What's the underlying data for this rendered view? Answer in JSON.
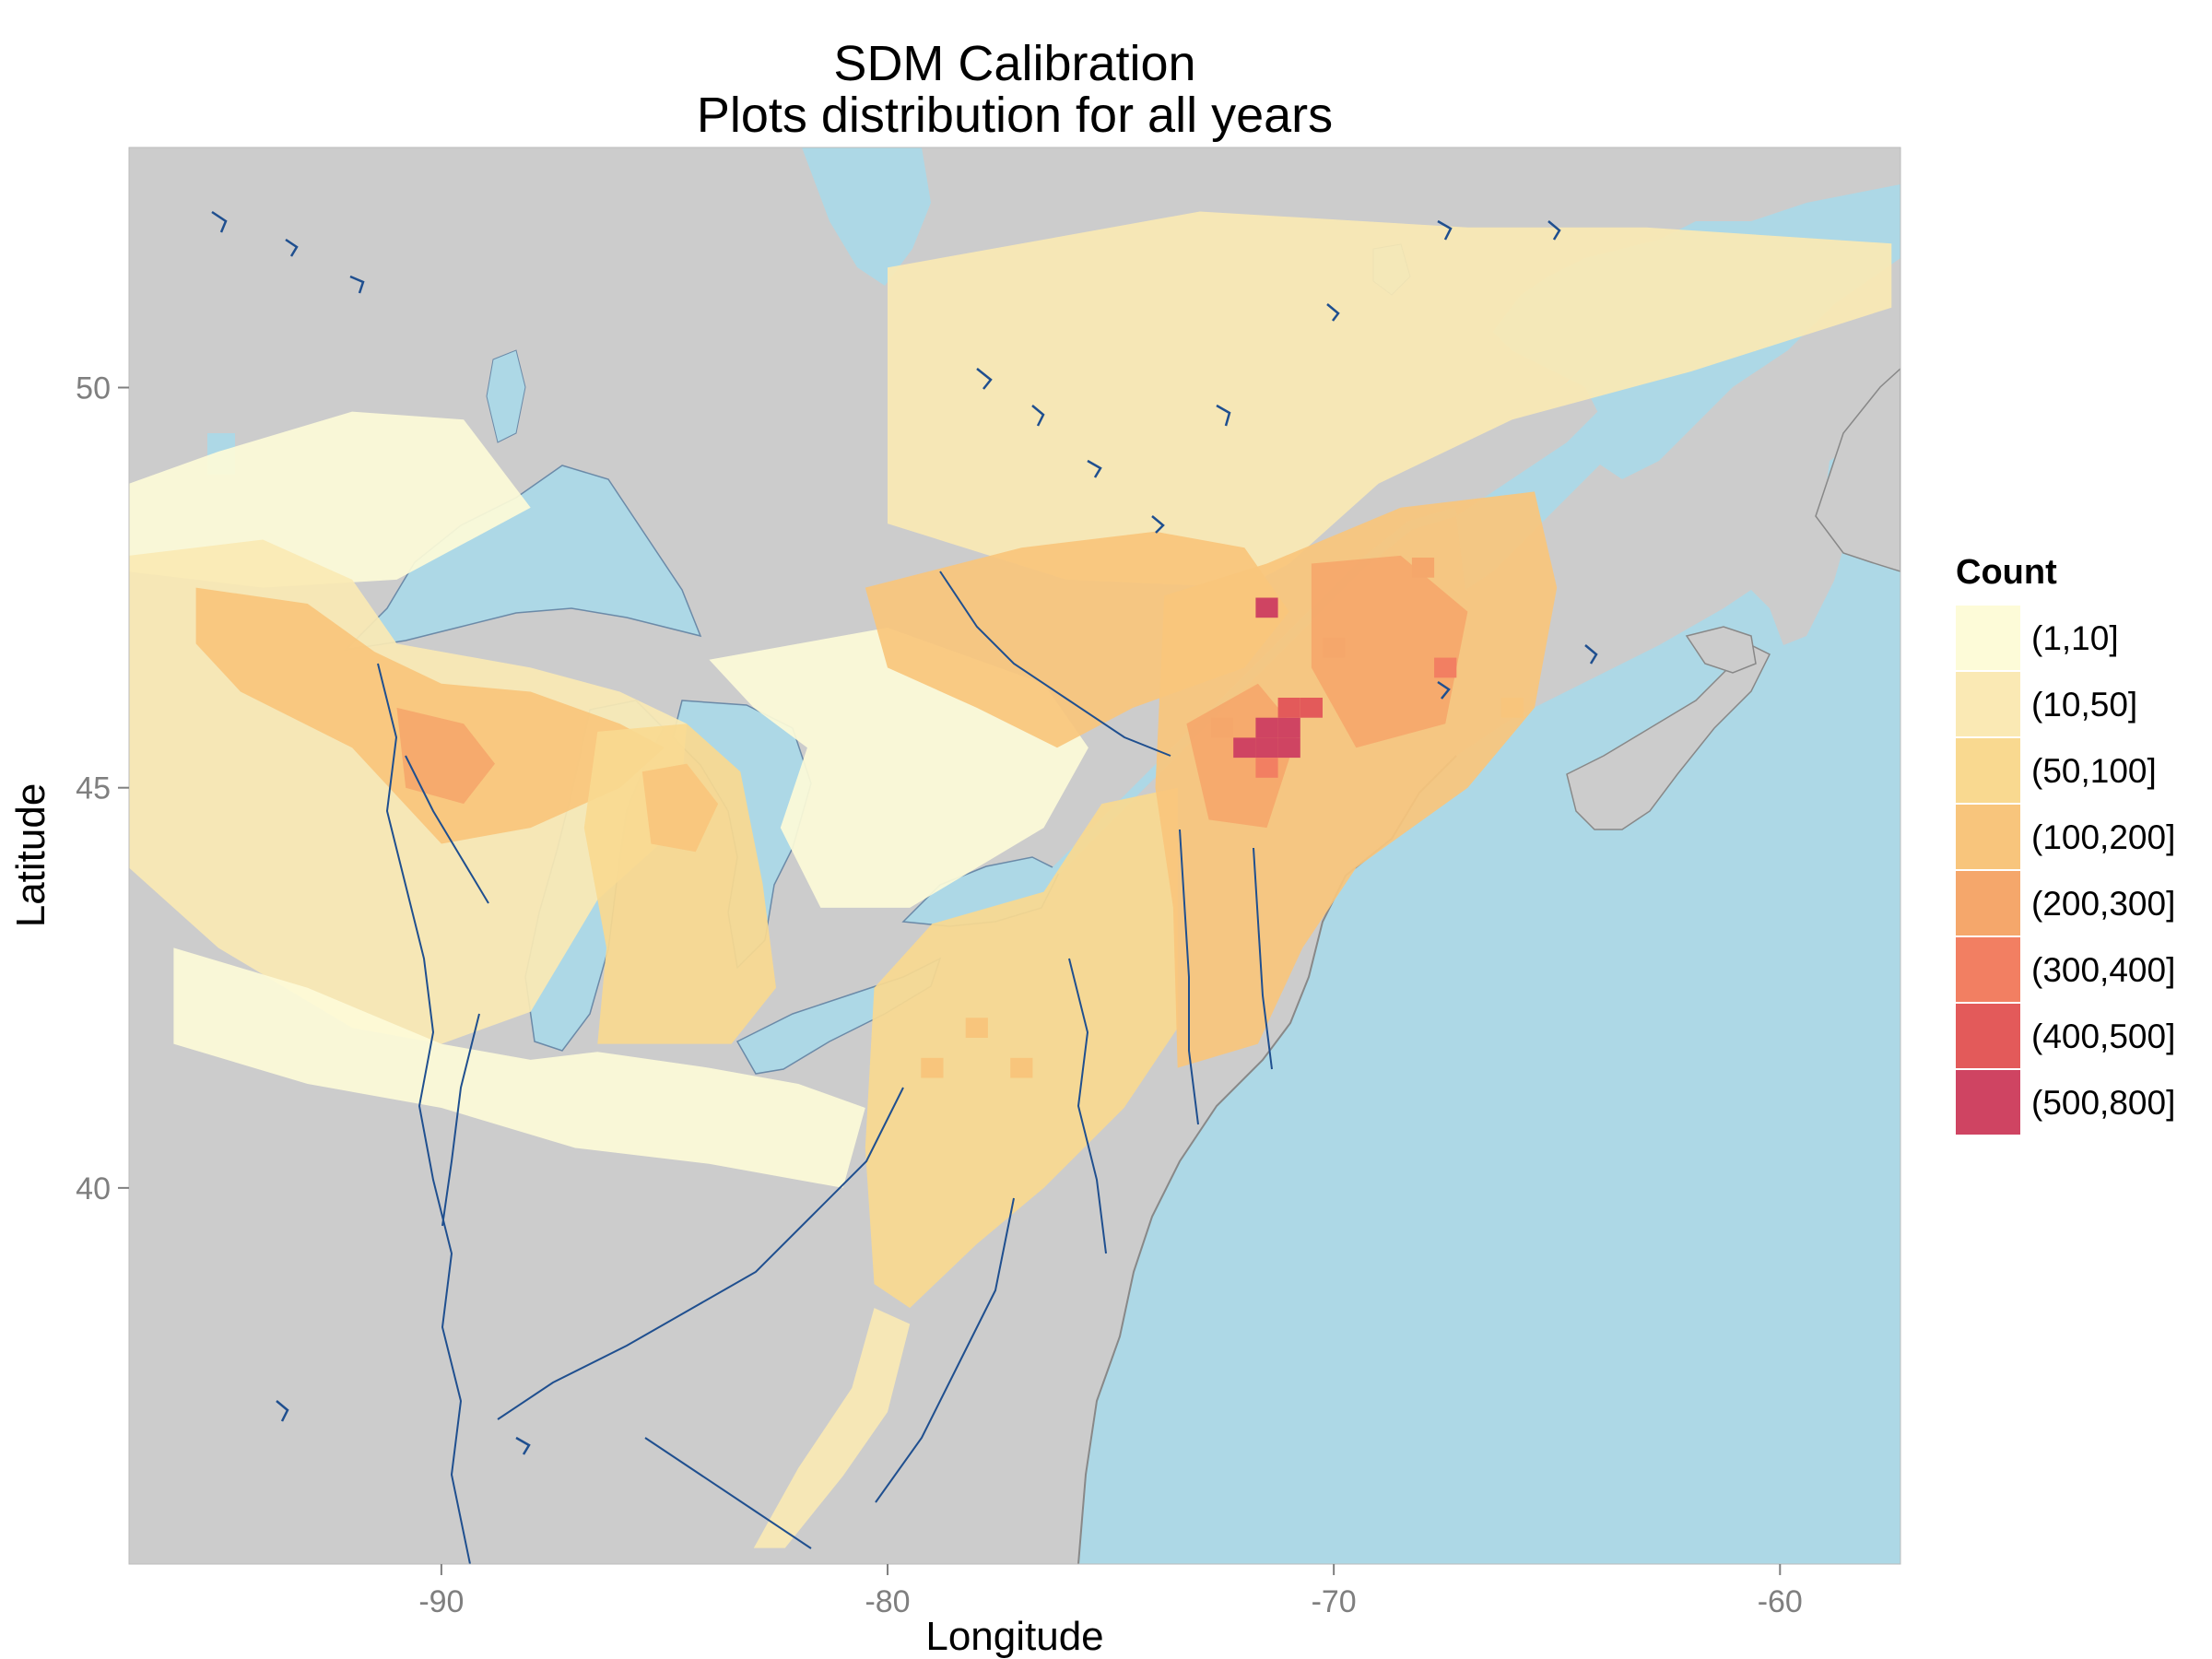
{
  "title": {
    "line1": "SDM Calibration",
    "line2": "Plots distribution for all years"
  },
  "colors": {
    "land": "#cccccc",
    "water": "#add8e6",
    "river": "#1f4f8f",
    "outline": "#888888"
  },
  "chart_data": {
    "type": "heatmap",
    "xlabel": "Longitude",
    "ylabel": "Latitude",
    "xlim": [
      -97,
      -57.3
    ],
    "ylim": [
      35.3,
      53
    ],
    "x_ticks": [
      -90,
      -80,
      -70,
      -60
    ],
    "y_ticks": [
      40,
      45,
      50
    ],
    "grid": false,
    "legend_position": "right",
    "legend": {
      "title": "Count",
      "bins": [
        {
          "label": "(1,10]",
          "color": "#fdfbd8"
        },
        {
          "label": "(10,50]",
          "color": "#fae9b4"
        },
        {
          "label": "(50,100]",
          "color": "#f9d990"
        },
        {
          "label": "(100,200]",
          "color": "#f8c57c"
        },
        {
          "label": "(200,300]",
          "color": "#f5a76b"
        },
        {
          "label": "(300,400]",
          "color": "#f27f62"
        },
        {
          "label": "(400,500]",
          "color": "#e35a5a"
        },
        {
          "label": "(500,800]",
          "color": "#cf4462"
        }
      ]
    },
    "cell_size_deg": 0.5,
    "regions": [
      {
        "name": "quebec-north",
        "bin": 1,
        "polygon": [
          [
            -80,
            51.5
          ],
          [
            -73,
            52.2
          ],
          [
            -67,
            52
          ],
          [
            -63,
            52
          ],
          [
            -57.5,
            51.8
          ],
          [
            -57.5,
            51
          ],
          [
            -62,
            50.2
          ],
          [
            -66,
            49.6
          ],
          [
            -69,
            48.8
          ],
          [
            -71,
            47.8
          ],
          [
            -72,
            47.5
          ],
          [
            -76,
            47.6
          ],
          [
            -80,
            48.3
          ]
        ]
      },
      {
        "name": "prairie-north",
        "bin": 0,
        "polygon": [
          [
            -97,
            48.8
          ],
          [
            -95,
            49.2
          ],
          [
            -92,
            49.7
          ],
          [
            -89.5,
            49.6
          ],
          [
            -88,
            48.5
          ],
          [
            -91,
            47.6
          ],
          [
            -94,
            47.5
          ],
          [
            -97,
            47.7
          ]
        ]
      },
      {
        "name": "minnesota-wisconsin",
        "bin": 1,
        "polygon": [
          [
            -97,
            47.9
          ],
          [
            -94,
            48.1
          ],
          [
            -92,
            47.6
          ],
          [
            -91,
            46.8
          ],
          [
            -88,
            46.5
          ],
          [
            -86,
            46.2
          ],
          [
            -84.5,
            45.8
          ],
          [
            -84.7,
            44.5
          ],
          [
            -86.5,
            43.6
          ],
          [
            -88,
            42.2
          ],
          [
            -90,
            41.8
          ],
          [
            -92,
            42
          ],
          [
            -95,
            43
          ],
          [
            -97,
            44
          ]
        ]
      },
      {
        "name": "upper-midwest-core",
        "bin": 3,
        "polygon": [
          [
            -95.5,
            47.5
          ],
          [
            -93,
            47.3
          ],
          [
            -91.5,
            46.7
          ],
          [
            -90,
            46.3
          ],
          [
            -88,
            46.2
          ],
          [
            -86,
            45.8
          ],
          [
            -85,
            45.5
          ],
          [
            -86,
            45
          ],
          [
            -88,
            44.5
          ],
          [
            -90,
            44.3
          ],
          [
            -92,
            45.5
          ],
          [
            -94.5,
            46.2
          ],
          [
            -95.5,
            46.8
          ]
        ]
      },
      {
        "name": "wisconsin-center",
        "bin": 4,
        "polygon": [
          [
            -91,
            46
          ],
          [
            -89.5,
            45.8
          ],
          [
            -88.8,
            45.3
          ],
          [
            -89.5,
            44.8
          ],
          [
            -90.8,
            45
          ]
        ]
      },
      {
        "name": "lower-michigan",
        "bin": 2,
        "polygon": [
          [
            -86.5,
            45.7
          ],
          [
            -84.5,
            45.8
          ],
          [
            -83.3,
            45.2
          ],
          [
            -82.8,
            43.8
          ],
          [
            -82.5,
            42.5
          ],
          [
            -83.5,
            41.8
          ],
          [
            -86.5,
            41.8
          ],
          [
            -86.3,
            43
          ],
          [
            -86.8,
            44.5
          ]
        ]
      },
      {
        "name": "michigan-core",
        "bin": 3,
        "polygon": [
          [
            -85.5,
            45.2
          ],
          [
            -84.5,
            45.3
          ],
          [
            -83.8,
            44.8
          ],
          [
            -84.3,
            44.2
          ],
          [
            -85.3,
            44.3
          ]
        ]
      },
      {
        "name": "midwest-south-fringe",
        "bin": 0,
        "polygon": [
          [
            -96,
            43
          ],
          [
            -93,
            42.5
          ],
          [
            -90,
            41.8
          ],
          [
            -88,
            41.6
          ],
          [
            -86.5,
            41.7
          ],
          [
            -84,
            41.5
          ],
          [
            -82,
            41.3
          ],
          [
            -80.5,
            41
          ],
          [
            -81,
            40
          ],
          [
            -84,
            40.3
          ],
          [
            -87,
            40.5
          ],
          [
            -90,
            41
          ],
          [
            -93,
            41.3
          ],
          [
            -96,
            41.8
          ]
        ]
      },
      {
        "name": "ontario-south",
        "bin": 0,
        "polygon": [
          [
            -84,
            46.6
          ],
          [
            -80,
            47
          ],
          [
            -76.5,
            46.3
          ],
          [
            -75.5,
            45.5
          ],
          [
            -76.5,
            44.5
          ],
          [
            -79.5,
            43.5
          ],
          [
            -81.5,
            43.5
          ],
          [
            -82.4,
            44.5
          ],
          [
            -81.8,
            45.5
          ],
          [
            -83,
            46
          ]
        ]
      },
      {
        "name": "ny-pa-appalachia",
        "bin": 2,
        "polygon": [
          [
            -80.3,
            42.5
          ],
          [
            -79,
            43.3
          ],
          [
            -76.5,
            43.7
          ],
          [
            -75.2,
            44.8
          ],
          [
            -73.5,
            45
          ],
          [
            -73.5,
            42
          ],
          [
            -74.7,
            41
          ],
          [
            -76.5,
            40
          ],
          [
            -78,
            39.3
          ],
          [
            -79.5,
            38.5
          ],
          [
            -80.3,
            38.8
          ],
          [
            -80.5,
            40.5
          ]
        ]
      },
      {
        "name": "appalachian-tail",
        "bin": 1,
        "polygon": [
          [
            -80.3,
            38.5
          ],
          [
            -79.5,
            38.3
          ],
          [
            -80,
            37.2
          ],
          [
            -81,
            36.4
          ],
          [
            -82.3,
            35.5
          ],
          [
            -83,
            35.5
          ],
          [
            -82,
            36.5
          ],
          [
            -80.8,
            37.5
          ]
        ]
      },
      {
        "name": "laurentians",
        "bin": 3,
        "polygon": [
          [
            -80.5,
            47.5
          ],
          [
            -77,
            48
          ],
          [
            -74,
            48.2
          ],
          [
            -72,
            48
          ],
          [
            -71,
            47.2
          ],
          [
            -72,
            46.5
          ],
          [
            -74.5,
            46
          ],
          [
            -76.2,
            45.5
          ],
          [
            -78,
            46
          ],
          [
            -80,
            46.5
          ]
        ]
      },
      {
        "name": "new-england-maine",
        "bin": 3,
        "polygon": [
          [
            -73.8,
            47.4
          ],
          [
            -71.5,
            47.8
          ],
          [
            -68.5,
            48.5
          ],
          [
            -65.5,
            48.7
          ],
          [
            -65,
            47.5
          ],
          [
            -65.5,
            46
          ],
          [
            -67,
            45
          ],
          [
            -69.5,
            44
          ],
          [
            -70.7,
            43
          ],
          [
            -71.7,
            41.8
          ],
          [
            -73.5,
            41.5
          ],
          [
            -73.6,
            43.5
          ],
          [
            -74,
            45
          ]
        ]
      },
      {
        "name": "new-england-hot",
        "bin": 4,
        "polygon": [
          [
            -70.5,
            47.8
          ],
          [
            -68.5,
            47.9
          ],
          [
            -67,
            47.2
          ],
          [
            -67.5,
            45.8
          ],
          [
            -69.5,
            45.5
          ],
          [
            -70.5,
            46.5
          ]
        ]
      },
      {
        "name": "vermont-nh-core",
        "bin": 4,
        "polygon": [
          [
            -73.3,
            45.8
          ],
          [
            -71.7,
            46.3
          ],
          [
            -70.8,
            45.7
          ],
          [
            -71.5,
            44.5
          ],
          [
            -72.8,
            44.6
          ]
        ]
      }
    ],
    "cells": [
      {
        "lon": -71.5,
        "lat": 47.25,
        "bin": 7
      },
      {
        "lon": -72,
        "lat": 45.5,
        "bin": 7
      },
      {
        "lon": -71.5,
        "lat": 45.5,
        "bin": 7
      },
      {
        "lon": -71,
        "lat": 45.5,
        "bin": 7
      },
      {
        "lon": -71.5,
        "lat": 45.75,
        "bin": 7
      },
      {
        "lon": -71,
        "lat": 45.75,
        "bin": 7
      },
      {
        "lon": -70.5,
        "lat": 46,
        "bin": 6
      },
      {
        "lon": -71,
        "lat": 46,
        "bin": 6
      },
      {
        "lon": -71.5,
        "lat": 45.25,
        "bin": 5
      },
      {
        "lon": -67.5,
        "lat": 46.5,
        "bin": 5
      },
      {
        "lon": -72.5,
        "lat": 45.75,
        "bin": 4
      },
      {
        "lon": -70,
        "lat": 46.75,
        "bin": 4
      },
      {
        "lon": -68,
        "lat": 47.75,
        "bin": 4
      },
      {
        "lon": -66,
        "lat": 46,
        "bin": 3
      },
      {
        "lon": -79,
        "lat": 41.5,
        "bin": 3
      },
      {
        "lon": -77,
        "lat": 41.5,
        "bin": 3
      },
      {
        "lon": -78,
        "lat": 42,
        "bin": 3
      }
    ]
  }
}
